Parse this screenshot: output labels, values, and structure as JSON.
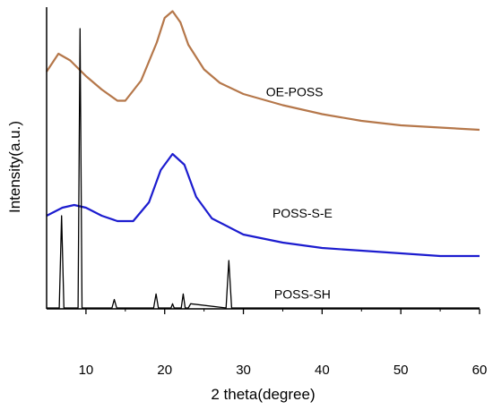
{
  "chart_data": {
    "type": "line",
    "title": "",
    "xlabel": "2 theta(degree)",
    "ylabel": "Intensity(a.u.)",
    "xlim": [
      5,
      60
    ],
    "xticks": [
      "10",
      "20",
      "30",
      "40",
      "50",
      "60"
    ],
    "yticks": [],
    "grid": false,
    "legend": "none",
    "series": [
      {
        "name": "OE-POSS",
        "color": "#b5774a",
        "x": [
          5,
          6.5,
          8,
          10,
          12,
          14,
          15,
          17,
          19,
          20,
          21,
          22,
          23,
          25,
          27,
          30,
          35,
          40,
          45,
          50,
          55,
          60
        ],
        "y": [
          0.72,
          0.8,
          0.77,
          0.7,
          0.64,
          0.59,
          0.59,
          0.68,
          0.85,
          0.96,
          0.99,
          0.94,
          0.84,
          0.73,
          0.67,
          0.62,
          0.57,
          0.53,
          0.5,
          0.48,
          0.47,
          0.46
        ]
      },
      {
        "name": "POSS-S-E",
        "color": "#1c1ccf",
        "x": [
          5,
          7,
          8.5,
          10,
          12,
          14,
          16,
          18,
          19.5,
          21,
          22.5,
          24,
          26,
          30,
          35,
          40,
          45,
          50,
          55,
          60
        ],
        "y": [
          0.33,
          0.36,
          0.37,
          0.36,
          0.33,
          0.31,
          0.31,
          0.38,
          0.5,
          0.56,
          0.52,
          0.4,
          0.32,
          0.26,
          0.23,
          0.21,
          0.2,
          0.19,
          0.18,
          0.18
        ]
      },
      {
        "name": "POSS-SH",
        "color": "#000000",
        "x": [
          5,
          6.6,
          6.9,
          7.2,
          9.0,
          9.25,
          9.5,
          12.0,
          13.3,
          13.6,
          13.9,
          18.6,
          18.9,
          19.2,
          20.8,
          21.0,
          21.2,
          22.1,
          22.35,
          22.6,
          23.0,
          23.3,
          27.8,
          28.15,
          28.5,
          60
        ],
        "y": [
          0.0,
          0.0,
          0.33,
          0.0,
          0.0,
          1.0,
          0.0,
          0.0,
          0.0,
          0.03,
          0.0,
          0.0,
          0.05,
          0.0,
          0.0,
          0.015,
          0.0,
          0.0,
          0.05,
          0.0,
          0.0,
          0.015,
          0.0,
          0.17,
          0.0,
          0.0
        ]
      }
    ],
    "annotations": [
      {
        "text": "OE-POSS",
        "x": 36.5,
        "y": 0.63
      },
      {
        "text": "POSS-S-E",
        "x": 37.5,
        "y": 0.34
      },
      {
        "text": "POSS-SH",
        "x": 37.5,
        "y": 0.05
      }
    ]
  }
}
